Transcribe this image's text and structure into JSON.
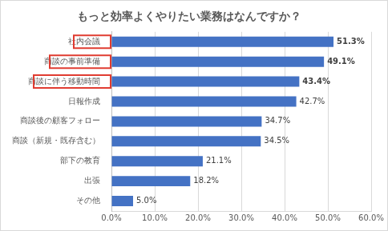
{
  "chart_data": {
    "type": "bar",
    "orientation": "horizontal",
    "title": "もっと効率よくやりたい業務はなんですか？",
    "categories": [
      "社内会議",
      "商談の事前準備",
      "商談に伴う移動時間",
      "日報作成",
      "商談後の顧客フォロー",
      "商談（新規・既存含む）",
      "部下の教育",
      "出張",
      "その他"
    ],
    "values": [
      51.3,
      49.1,
      43.4,
      42.7,
      34.7,
      34.5,
      21.1,
      18.2,
      5.0
    ],
    "value_labels": [
      "51.3%",
      "49.1%",
      "43.4%",
      "42.7%",
      "34.7%",
      "34.5%",
      "21.1%",
      "18.2%",
      "5.0%"
    ],
    "color": "#4472c4",
    "xlim": [
      0,
      60
    ],
    "xticks": [
      {
        "value": 0,
        "label": "0.0%"
      },
      {
        "value": 10,
        "label": "10.0%"
      },
      {
        "value": 20,
        "label": "20.0%"
      },
      {
        "value": 30,
        "label": "30.0%"
      },
      {
        "value": 40,
        "label": "40.0%"
      },
      {
        "value": 50,
        "label": "50.0%"
      },
      {
        "value": 60,
        "label": "60.0%"
      }
    ],
    "grid": true,
    "data_labels": true
  }
}
